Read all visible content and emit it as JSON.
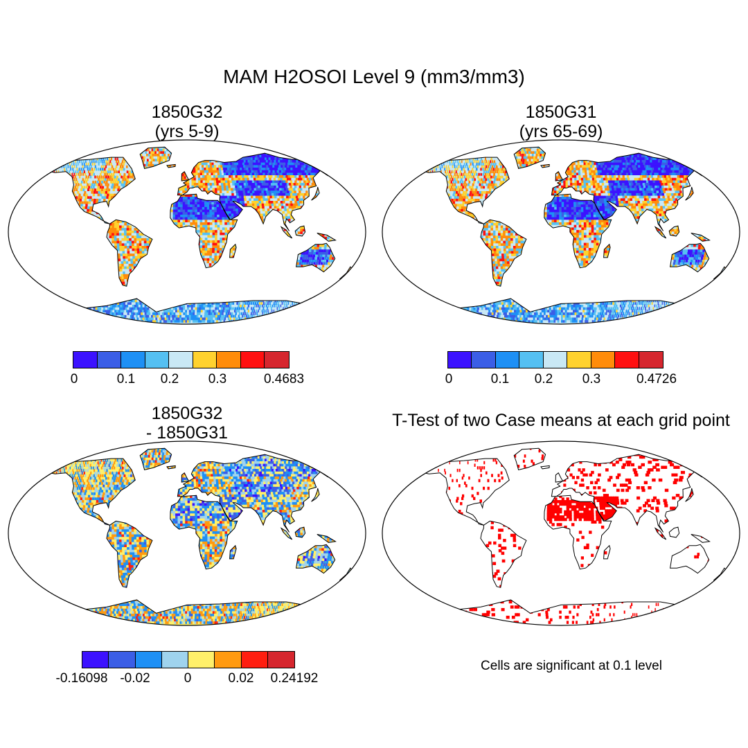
{
  "title": "MAM H2OSOI Level 9 (mm3/mm3)",
  "panels": [
    {
      "id": "p1",
      "title": "1850G32\n(yrs 5-9)",
      "colors": [
        "#3c12ff",
        "#3b5ee6",
        "#1e90f5",
        "#55c0f2",
        "#c9e8f5",
        "#ffd22e",
        "#ff8c0a",
        "#ff1010",
        "#d6262e"
      ],
      "tick_labels": [
        "0",
        "0.1",
        "0.2",
        "0.3",
        "0.4683"
      ]
    },
    {
      "id": "p2",
      "title": "1850G31\n(yrs 65-69)",
      "colors": [
        "#3c12ff",
        "#3b5ee6",
        "#1e90f5",
        "#55c0f2",
        "#c9e8f5",
        "#ffd22e",
        "#ff8c0a",
        "#ff1010",
        "#d6262e"
      ],
      "tick_labels": [
        "0",
        "0.1",
        "0.2",
        "0.3",
        "0.4726"
      ]
    },
    {
      "id": "p3",
      "title": "1850G32\n- 1850G31",
      "colors": [
        "#3c12ff",
        "#3b5ee6",
        "#1e90f5",
        "#9fd3ee",
        "#fff06a",
        "#ff9a10",
        "#ff1e10",
        "#d6262e"
      ],
      "tick_labels": [
        "-0.16098",
        "-0.02",
        "0",
        "0.02",
        "0.24192"
      ]
    },
    {
      "id": "p4",
      "title": "T-Test of two Case means at each grid point",
      "note": "Cells are significant at 0.1 level",
      "colors": [
        "#ff0000"
      ]
    }
  ]
}
